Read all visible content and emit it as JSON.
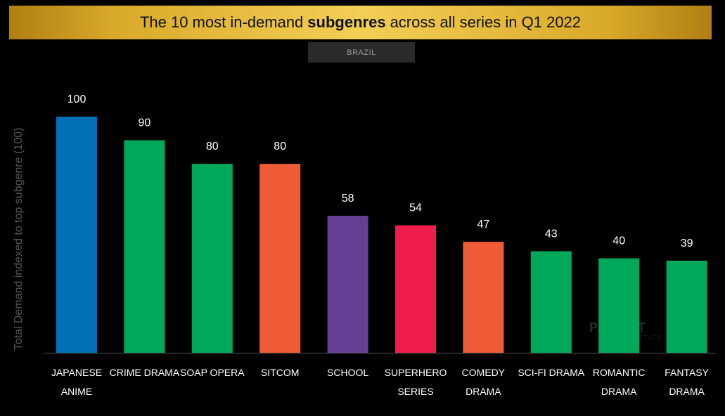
{
  "title": {
    "pre": "The 10 most in-demand",
    "bold": "subgenres",
    "post": "across all series in Q1 2022"
  },
  "filter": "BRAZIL",
  "watermark": {
    "name": "PARROT",
    "sub": "ANALYTICS"
  },
  "chart_data": {
    "type": "bar",
    "title": "The 10 most in-demand subgenres across all series in Q1 2022",
    "xlabel": "",
    "ylabel": "Total Demand indexed to top subgenre (100)",
    "ylim": [
      0,
      100
    ],
    "grid": false,
    "categories": [
      [
        "JAPANESE",
        "ANIME"
      ],
      [
        "CRIME DRAMA"
      ],
      [
        "SOAP OPERA"
      ],
      [
        "SITCOM"
      ],
      [
        "SCHOOL"
      ],
      [
        "SUPERHERO",
        "SERIES"
      ],
      [
        "COMEDY",
        "DRAMA"
      ],
      [
        "SCI-FI DRAMA"
      ],
      [
        "ROMANTIC",
        "DRAMA"
      ],
      [
        "FANTASY",
        "DRAMA"
      ]
    ],
    "values": [
      100,
      90,
      80,
      80,
      58,
      54,
      47,
      43,
      40,
      39
    ],
    "colors": [
      "#0170b5",
      "#00a85a",
      "#00a85a",
      "#ef5a37",
      "#663f95",
      "#ee1d4b",
      "#ef5a37",
      "#00a85a",
      "#00a85a",
      "#00a85a"
    ]
  }
}
